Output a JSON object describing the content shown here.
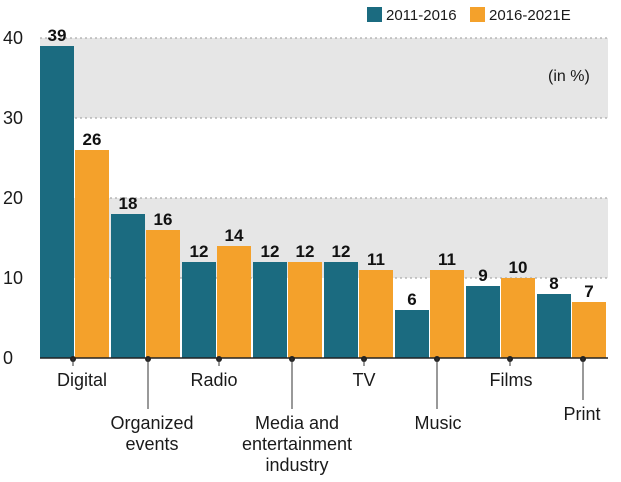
{
  "chart_data": {
    "type": "bar",
    "categories": [
      "Digital",
      "Organized events",
      "Radio",
      "Media and entertainment industry",
      "TV",
      "Music",
      "Films",
      "Print"
    ],
    "category_lines": [
      [
        "Digital"
      ],
      [
        "Organized",
        "events"
      ],
      [
        "Radio"
      ],
      [
        "Media and",
        "entertainment",
        "industry"
      ],
      [
        "TV"
      ],
      [
        "Music"
      ],
      [
        "Films"
      ],
      [
        "Print"
      ]
    ],
    "series": [
      {
        "name": "2011-2016",
        "values": [
          39,
          18,
          12,
          12,
          12,
          6,
          9,
          8
        ],
        "color": "#1b6b80"
      },
      {
        "name": "2016-2021E",
        "values": [
          26,
          16,
          14,
          12,
          11,
          11,
          10,
          7
        ],
        "color": "#f4a12b"
      }
    ],
    "yticks": [
      "0",
      "10",
      "20",
      "30",
      "40"
    ],
    "ylim": [
      0,
      40
    ],
    "unit_note": "(in %)",
    "title": "",
    "xlabel": "",
    "ylabel": "",
    "legend_position": "top-right",
    "band_color": "#e6e6e6"
  }
}
